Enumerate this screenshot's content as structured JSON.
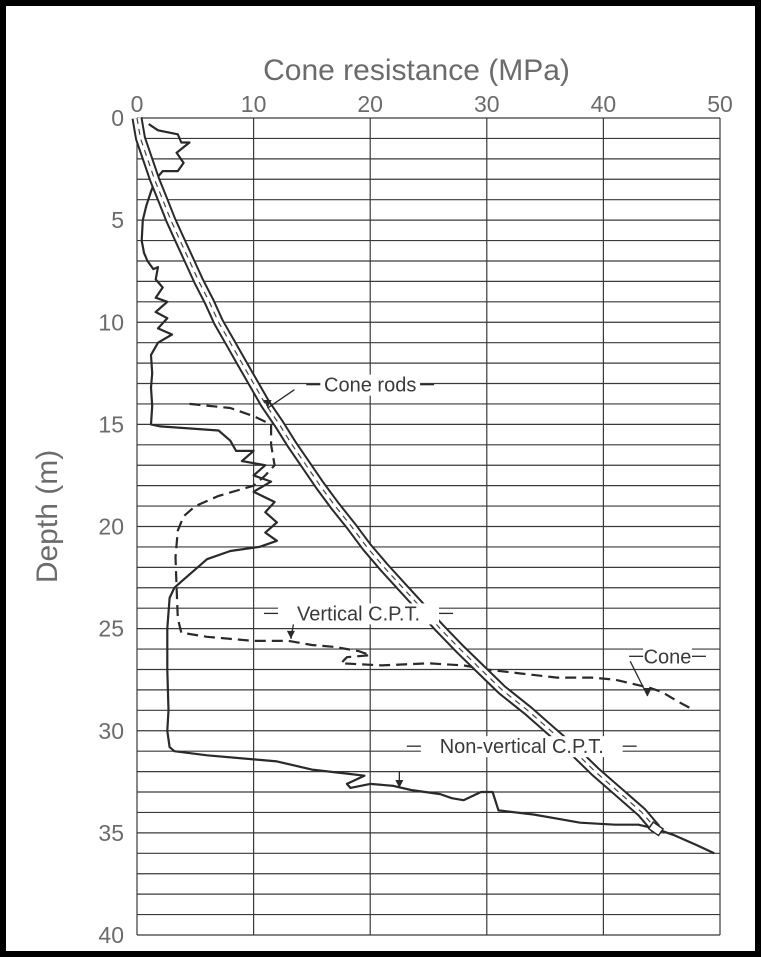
{
  "chart_data": {
    "type": "line",
    "xlabel": "Cone resistance (MPa)",
    "ylabel": "Depth (m)",
    "xlim": [
      0,
      50
    ],
    "ylim": [
      0,
      40
    ],
    "y_inverted": true,
    "x_axis_position": "top",
    "x_ticks": [
      0,
      10,
      20,
      30,
      40,
      50
    ],
    "y_ticks": [
      0,
      5,
      10,
      15,
      20,
      25,
      30,
      35,
      40
    ],
    "grid": true,
    "colors": {
      "line": "#2a2a2a",
      "grid": "#3a3a3a",
      "text": "#6b6b6b",
      "frame": "#000000"
    },
    "series": [
      {
        "id": "non-vertical",
        "style": "solid",
        "points": [
          [
            1.0,
            0.3
          ],
          [
            1.8,
            0.6
          ],
          [
            3.5,
            0.8
          ],
          [
            3.8,
            1.2
          ],
          [
            4.5,
            1.2
          ],
          [
            3.4,
            1.7
          ],
          [
            4.0,
            2.2
          ],
          [
            3.5,
            2.6
          ],
          [
            2.2,
            2.6
          ],
          [
            1.6,
            3.0
          ],
          [
            1.2,
            3.6
          ],
          [
            0.8,
            4.3
          ],
          [
            0.5,
            5.0
          ],
          [
            0.4,
            6.0
          ],
          [
            0.6,
            6.6
          ],
          [
            0.9,
            7.0
          ],
          [
            1.4,
            7.4
          ],
          [
            1.8,
            7.3
          ],
          [
            1.6,
            7.9
          ],
          [
            2.2,
            8.3
          ],
          [
            1.6,
            8.8
          ],
          [
            2.6,
            9.0
          ],
          [
            1.6,
            9.5
          ],
          [
            2.6,
            9.8
          ],
          [
            1.8,
            10.3
          ],
          [
            3.0,
            10.6
          ],
          [
            1.8,
            11.0
          ],
          [
            1.2,
            11.6
          ],
          [
            1.3,
            12.5
          ],
          [
            1.2,
            13.2
          ],
          [
            1.3,
            14.1
          ],
          [
            1.2,
            15.0
          ],
          [
            2.0,
            15.1
          ],
          [
            7.0,
            15.3
          ],
          [
            8.0,
            15.8
          ],
          [
            8.5,
            16.3
          ],
          [
            10.0,
            16.3
          ],
          [
            9.0,
            16.8
          ],
          [
            11.0,
            17.0
          ],
          [
            10.0,
            17.5
          ],
          [
            11.5,
            17.8
          ],
          [
            10.0,
            18.3
          ],
          [
            11.8,
            18.8
          ],
          [
            11.0,
            19.3
          ],
          [
            12.0,
            19.8
          ],
          [
            11.0,
            20.3
          ],
          [
            12.0,
            20.7
          ],
          [
            10.5,
            21.0
          ],
          [
            8.0,
            21.2
          ],
          [
            6.0,
            21.6
          ],
          [
            5.0,
            22.1
          ],
          [
            4.0,
            22.6
          ],
          [
            3.2,
            23.0
          ],
          [
            2.8,
            23.5
          ],
          [
            2.6,
            25.0
          ],
          [
            2.6,
            27.0
          ],
          [
            2.7,
            29.0
          ],
          [
            2.6,
            30.0
          ],
          [
            2.8,
            30.8
          ],
          [
            3.2,
            31.0
          ],
          [
            6.0,
            31.2
          ],
          [
            12.0,
            31.5
          ],
          [
            15.0,
            31.9
          ],
          [
            18.0,
            32.1
          ],
          [
            19.5,
            32.2
          ],
          [
            18.0,
            32.6
          ],
          [
            18.3,
            32.8
          ],
          [
            20.0,
            32.6
          ],
          [
            22.0,
            32.7
          ],
          [
            23.5,
            32.9
          ],
          [
            26.0,
            33.1
          ],
          [
            27.0,
            33.3
          ],
          [
            28.0,
            33.4
          ],
          [
            29.5,
            33.0
          ],
          [
            30.5,
            33.0
          ],
          [
            31.0,
            33.9
          ],
          [
            34.0,
            34.1
          ],
          [
            36.0,
            34.3
          ],
          [
            38.0,
            34.5
          ],
          [
            41.0,
            34.6
          ],
          [
            43.0,
            34.6
          ],
          [
            44.5,
            34.8
          ],
          [
            46.0,
            35.1
          ],
          [
            48.0,
            35.6
          ],
          [
            49.5,
            36.0
          ]
        ]
      },
      {
        "id": "vertical",
        "style": "dashed",
        "points": [
          [
            4.5,
            14.0
          ],
          [
            8.0,
            14.2
          ],
          [
            10.0,
            14.6
          ],
          [
            11.5,
            15.0
          ],
          [
            11.5,
            16.0
          ],
          [
            11.8,
            17.0
          ],
          [
            11.0,
            17.5
          ],
          [
            10.0,
            18.0
          ],
          [
            7.0,
            18.5
          ],
          [
            5.0,
            19.0
          ],
          [
            4.0,
            19.5
          ],
          [
            3.5,
            20.2
          ],
          [
            3.3,
            21.5
          ],
          [
            3.4,
            23.0
          ],
          [
            3.5,
            24.5
          ],
          [
            3.8,
            25.2
          ],
          [
            6.0,
            25.4
          ],
          [
            10.0,
            25.6
          ],
          [
            13.0,
            25.6
          ],
          [
            15.0,
            25.8
          ],
          [
            17.0,
            25.9
          ],
          [
            19.0,
            26.1
          ],
          [
            20.0,
            26.3
          ],
          [
            18.0,
            26.4
          ],
          [
            17.5,
            26.7
          ],
          [
            21.0,
            26.8
          ],
          [
            25.0,
            26.7
          ],
          [
            28.0,
            26.8
          ],
          [
            30.0,
            27.0
          ],
          [
            33.0,
            27.2
          ],
          [
            36.0,
            27.4
          ],
          [
            39.0,
            27.4
          ],
          [
            41.0,
            27.5
          ],
          [
            42.5,
            27.7
          ],
          [
            44.0,
            27.9
          ],
          [
            45.0,
            28.1
          ],
          [
            46.5,
            28.6
          ],
          [
            47.8,
            29.0
          ]
        ]
      },
      {
        "id": "cone-rods",
        "style": "double",
        "points": [
          [
            0,
            0
          ],
          [
            0.3,
            1
          ],
          [
            0.9,
            2
          ],
          [
            1.5,
            3
          ],
          [
            2.2,
            4
          ],
          [
            2.9,
            5
          ],
          [
            3.7,
            6
          ],
          [
            4.5,
            7
          ],
          [
            5.3,
            8
          ],
          [
            6.2,
            9
          ],
          [
            7.0,
            10
          ],
          [
            8.0,
            11
          ],
          [
            9.0,
            12
          ],
          [
            10.0,
            13
          ],
          [
            11.0,
            14
          ],
          [
            12.2,
            15
          ],
          [
            13.3,
            16
          ],
          [
            14.5,
            17
          ],
          [
            15.7,
            18
          ],
          [
            17.0,
            19
          ],
          [
            18.4,
            20
          ],
          [
            19.7,
            21
          ],
          [
            21.2,
            22
          ],
          [
            22.8,
            23
          ],
          [
            24.4,
            24
          ],
          [
            26.0,
            25
          ],
          [
            27.7,
            26
          ],
          [
            29.5,
            27
          ],
          [
            31.3,
            28
          ],
          [
            33.5,
            29
          ],
          [
            35.5,
            30
          ],
          [
            37.5,
            31
          ],
          [
            39.3,
            32
          ],
          [
            41.3,
            33
          ],
          [
            43.3,
            34
          ],
          [
            44.5,
            34.8
          ]
        ]
      }
    ],
    "annotations": [
      {
        "id": "cone-rods",
        "text": "Cone rods",
        "x": 20,
        "y": 13.3
      },
      {
        "id": "vertical",
        "text": "Vertical C.P.T.",
        "x": 19,
        "y": 24.5
      },
      {
        "id": "cone",
        "text": "Cone",
        "x": 45.5,
        "y": 26.6
      },
      {
        "id": "non-vertical",
        "text": "Non-vertical C.P.T.",
        "x": 33,
        "y": 31.0
      }
    ]
  }
}
